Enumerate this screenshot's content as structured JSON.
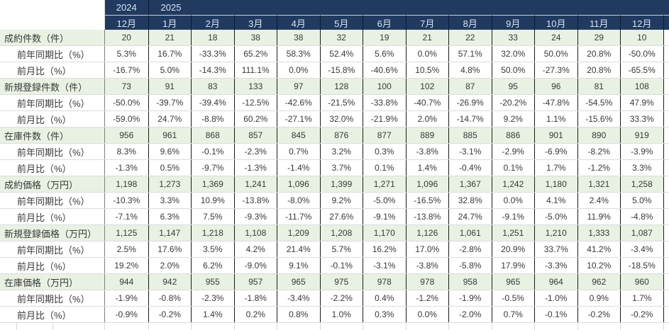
{
  "table": {
    "year_header": {
      "year_left": "2024",
      "year_right": "2025"
    },
    "months": [
      "12月",
      "1月",
      "2月",
      "3月",
      "4月",
      "5月",
      "6月",
      "7月",
      "8月",
      "9月",
      "10月",
      "11月",
      "12月"
    ],
    "rows": [
      {
        "label": "成約件数（件）",
        "type": "category",
        "values": [
          "20",
          "21",
          "18",
          "38",
          "38",
          "32",
          "19",
          "21",
          "22",
          "33",
          "24",
          "29",
          "10"
        ]
      },
      {
        "label": "前年同期比（%）",
        "type": "sub",
        "values": [
          "5.3%",
          "16.7%",
          "-33.3%",
          "65.2%",
          "58.3%",
          "52.4%",
          "5.6%",
          "0.0%",
          "57.1%",
          "32.0%",
          "50.0%",
          "20.8%",
          "-50.0%"
        ]
      },
      {
        "label": "前月比（%）",
        "type": "sub",
        "values": [
          "-16.7%",
          "5.0%",
          "-14.3%",
          "111.1%",
          "0.0%",
          "-15.8%",
          "-40.6%",
          "10.5%",
          "4.8%",
          "50.0%",
          "-27.3%",
          "20.8%",
          "-65.5%"
        ]
      },
      {
        "label": "新規登録件数（件）",
        "type": "category",
        "values": [
          "73",
          "91",
          "83",
          "133",
          "97",
          "128",
          "100",
          "102",
          "87",
          "95",
          "96",
          "81",
          "108"
        ]
      },
      {
        "label": "前年同期比（%）",
        "type": "sub",
        "values": [
          "-50.0%",
          "-39.7%",
          "-39.4%",
          "-12.5%",
          "-42.6%",
          "-21.5%",
          "-33.8%",
          "-40.7%",
          "-26.9%",
          "-20.2%",
          "-47.8%",
          "-54.5%",
          "47.9%"
        ]
      },
      {
        "label": "前月比（%）",
        "type": "sub",
        "values": [
          "-59.0%",
          "24.7%",
          "-8.8%",
          "60.2%",
          "-27.1%",
          "32.0%",
          "-21.9%",
          "2.0%",
          "-14.7%",
          "9.2%",
          "1.1%",
          "-15.6%",
          "33.3%"
        ]
      },
      {
        "label": "在庫件数（件）",
        "type": "category",
        "values": [
          "956",
          "961",
          "868",
          "857",
          "845",
          "876",
          "877",
          "889",
          "885",
          "886",
          "901",
          "890",
          "919"
        ]
      },
      {
        "label": "前年同期比（%）",
        "type": "sub",
        "values": [
          "8.3%",
          "9.6%",
          "-0.1%",
          "-2.3%",
          "0.7%",
          "3.2%",
          "0.3%",
          "-3.8%",
          "-3.1%",
          "-2.9%",
          "-6.9%",
          "-8.2%",
          "-3.9%"
        ]
      },
      {
        "label": "前月比（%）",
        "type": "sub",
        "values": [
          "-1.3%",
          "0.5%",
          "-9.7%",
          "-1.3%",
          "-1.4%",
          "3.7%",
          "0.1%",
          "1.4%",
          "-0.4%",
          "0.1%",
          "1.7%",
          "-1.2%",
          "3.3%"
        ]
      },
      {
        "label": "成約価格（万円）",
        "type": "category",
        "values": [
          "1,198",
          "1,273",
          "1,369",
          "1,241",
          "1,096",
          "1,399",
          "1,271",
          "1,096",
          "1,367",
          "1,242",
          "1,180",
          "1,321",
          "1,258"
        ]
      },
      {
        "label": "前年同期比（%）",
        "type": "sub",
        "values": [
          "-10.3%",
          "3.3%",
          "10.9%",
          "-13.8%",
          "-8.0%",
          "9.2%",
          "-5.0%",
          "-16.5%",
          "32.8%",
          "0.0%",
          "4.1%",
          "2.4%",
          "5.0%"
        ]
      },
      {
        "label": "前月比（%）",
        "type": "sub",
        "values": [
          "-7.1%",
          "6.3%",
          "7.5%",
          "-9.3%",
          "-11.7%",
          "27.6%",
          "-9.1%",
          "-13.8%",
          "24.7%",
          "-9.1%",
          "-5.0%",
          "11.9%",
          "-4.8%"
        ]
      },
      {
        "label": "新規登録価格（万円）",
        "type": "category",
        "values": [
          "1,125",
          "1,147",
          "1,218",
          "1,108",
          "1,209",
          "1,208",
          "1,170",
          "1,126",
          "1,061",
          "1,251",
          "1,210",
          "1,333",
          "1,087"
        ]
      },
      {
        "label": "前年同期比（%）",
        "type": "sub",
        "values": [
          "2.5%",
          "17.6%",
          "3.5%",
          "4.2%",
          "21.4%",
          "5.7%",
          "16.2%",
          "17.0%",
          "-2.8%",
          "20.9%",
          "33.7%",
          "41.2%",
          "-3.4%"
        ]
      },
      {
        "label": "前月比（%）",
        "type": "sub",
        "values": [
          "19.2%",
          "2.0%",
          "6.2%",
          "-9.0%",
          "9.1%",
          "-0.1%",
          "-3.1%",
          "-3.8%",
          "-5.8%",
          "17.9%",
          "-3.3%",
          "10.2%",
          "-18.5%"
        ]
      },
      {
        "label": "在庫価格（万円）",
        "type": "category",
        "values": [
          "944",
          "942",
          "955",
          "957",
          "965",
          "975",
          "978",
          "978",
          "958",
          "965",
          "964",
          "962",
          "960"
        ]
      },
      {
        "label": "前年同期比（%）",
        "type": "sub",
        "values": [
          "-1.9%",
          "-0.8%",
          "-2.3%",
          "-1.8%",
          "-3.4%",
          "-2.2%",
          "0.4%",
          "-1.2%",
          "-1.9%",
          "-0.5%",
          "-1.0%",
          "0.9%",
          "1.7%"
        ]
      },
      {
        "label": "前月比（%）",
        "type": "sub",
        "values": [
          "-0.9%",
          "-0.2%",
          "1.4%",
          "0.2%",
          "0.8%",
          "1.0%",
          "0.3%",
          "0.0%",
          "-2.0%",
          "0.7%",
          "-0.1%",
          "-0.2%",
          "-0.2%"
        ]
      }
    ]
  },
  "colors": {
    "header_bg": "#213a60",
    "header_text": "#d9e4f2",
    "category_row_bg": "#e9f1e3",
    "column_grid": "#1a1a1a",
    "row_grid": "#dcdcdc",
    "label_boundary": "#7f7f7f",
    "body_text": "#383838"
  }
}
